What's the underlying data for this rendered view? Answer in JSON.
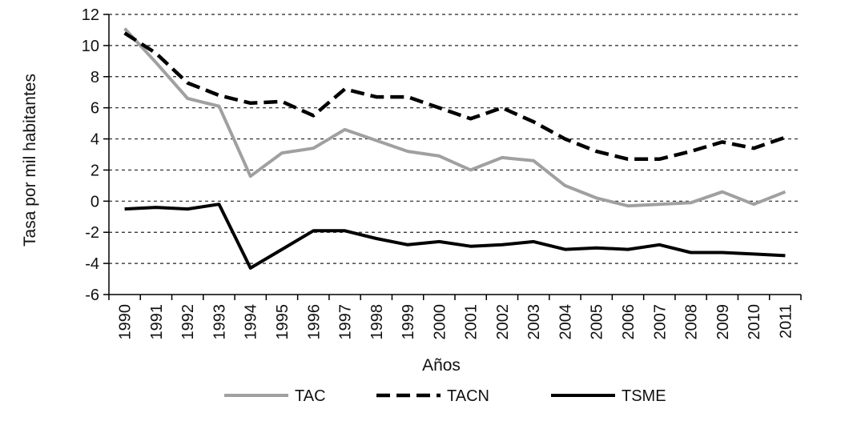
{
  "chart_data": {
    "type": "line",
    "title": "",
    "xlabel": "Años",
    "ylabel": "Tasa por mil habitantes",
    "ylim": [
      -6,
      12
    ],
    "yticks": [
      "12",
      "10",
      "8",
      "6",
      "4",
      "2",
      "0",
      "-2",
      "-4",
      "-6"
    ],
    "x": [
      "1990",
      "1991",
      "1992",
      "1993",
      "1994",
      "1995",
      "1996",
      "1997",
      "1998",
      "1999",
      "2000",
      "2001",
      "2002",
      "2003",
      "2004",
      "2005",
      "2006",
      "2007",
      "2008",
      "2009",
      "2010",
      "2011"
    ],
    "grid": "horizontal dashed",
    "legend": "bottom",
    "series": [
      {
        "name": "TAC",
        "style": "solid",
        "color": "#a0a0a0",
        "values": [
          11.1,
          8.9,
          6.6,
          6.1,
          1.6,
          3.1,
          3.4,
          4.6,
          3.9,
          3.2,
          2.9,
          2.0,
          2.8,
          2.6,
          1.0,
          0.2,
          -0.3,
          -0.2,
          -0.1,
          0.6,
          -0.2,
          0.6
        ]
      },
      {
        "name": "TACN",
        "style": "dashed",
        "color": "#000000",
        "values": [
          10.8,
          9.5,
          7.6,
          6.8,
          6.3,
          6.4,
          5.5,
          7.2,
          6.7,
          6.7,
          6.0,
          5.3,
          6.0,
          5.1,
          4.0,
          3.2,
          2.7,
          2.7,
          3.2,
          3.8,
          3.4,
          4.1
        ]
      },
      {
        "name": "TSME",
        "style": "solid",
        "color": "#000000",
        "values": [
          -0.5,
          -0.4,
          -0.5,
          -0.2,
          -4.3,
          -3.1,
          -1.9,
          -1.9,
          -2.4,
          -2.8,
          -2.6,
          -2.9,
          -2.8,
          -2.6,
          -3.1,
          -3.0,
          -3.1,
          -2.8,
          -3.3,
          -3.3,
          -3.4,
          -3.5
        ]
      }
    ]
  }
}
